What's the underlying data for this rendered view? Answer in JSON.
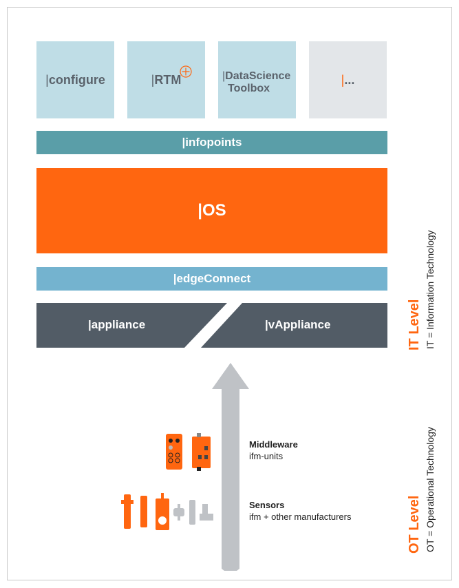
{
  "apps": [
    {
      "prefix": "|",
      "label": "configure"
    },
    {
      "prefix": "|",
      "label": "RTM",
      "badge": "plus-circle-icon"
    },
    {
      "prefix": "|",
      "label": "DataScience",
      "label2": "Toolbox"
    },
    {
      "prefix": "|",
      "label": "..."
    }
  ],
  "layers": {
    "infopoints": "|infopoints",
    "os": "|OS",
    "edgeconnect": "|edgeConnect",
    "appliance": "|appliance",
    "vappliance": "|vAppliance"
  },
  "ot_items": [
    {
      "title": "Middleware",
      "subtitle": "ifm-units"
    },
    {
      "title": "Sensors",
      "subtitle": "ifm + other manufacturers"
    }
  ],
  "levels": {
    "it_title": "IT Level",
    "it_desc": "IT = Information Technology",
    "ot_title": "OT Level",
    "ot_desc": "OT = Operational Technology"
  },
  "colors": {
    "orange": "#ff6610",
    "teal": "#5a9ea8",
    "light_blue": "#74b3cf",
    "tile_blue": "#bfdde6",
    "dark": "#525c66",
    "arrow": "#bfc2c6"
  }
}
